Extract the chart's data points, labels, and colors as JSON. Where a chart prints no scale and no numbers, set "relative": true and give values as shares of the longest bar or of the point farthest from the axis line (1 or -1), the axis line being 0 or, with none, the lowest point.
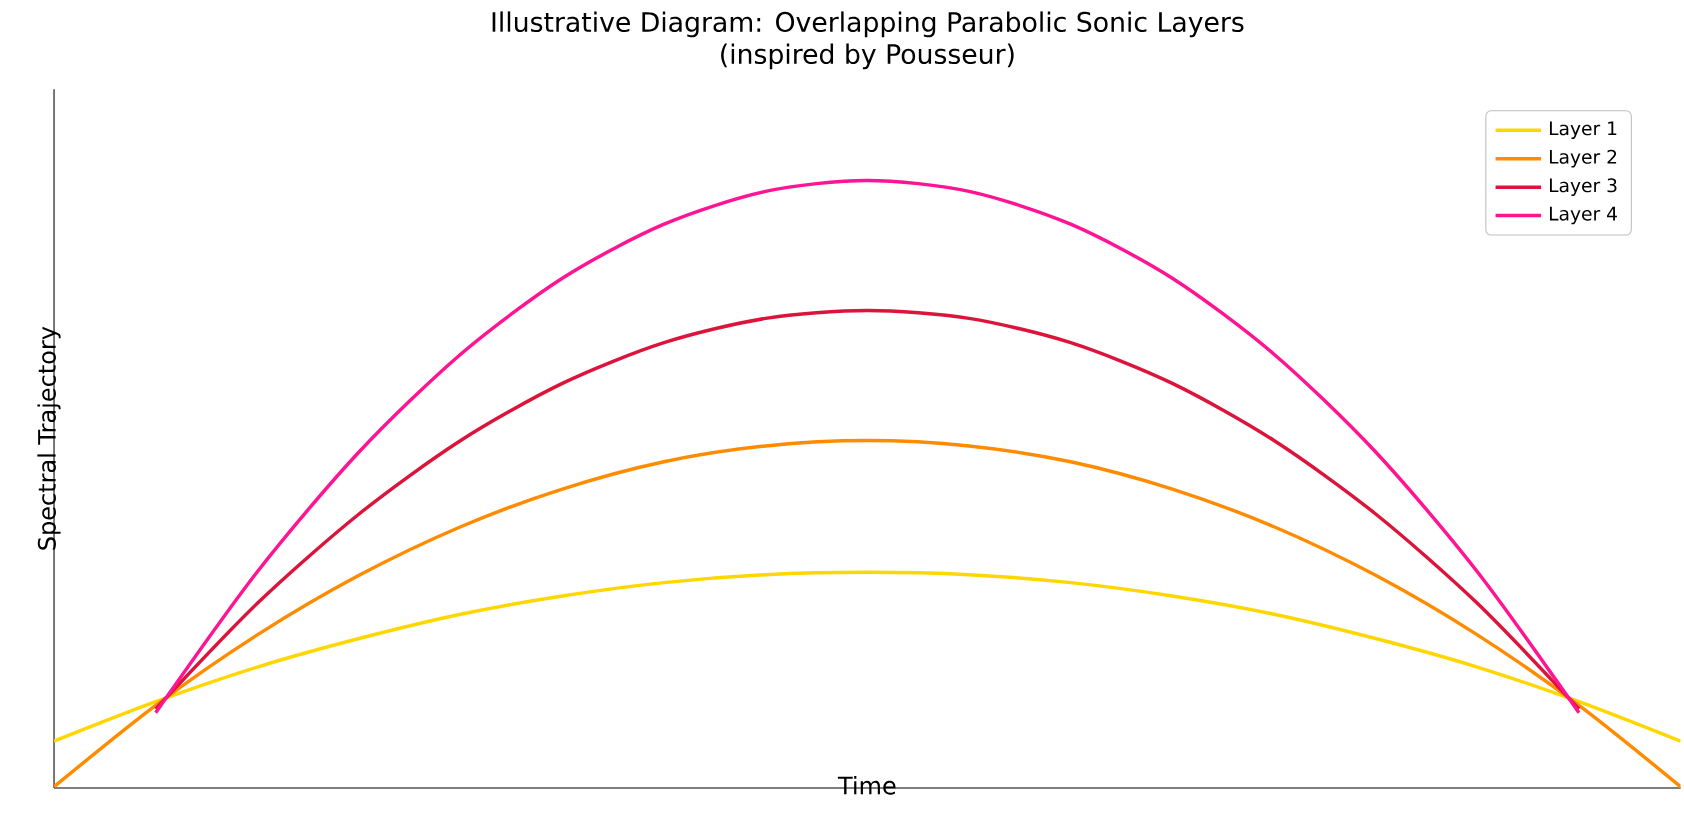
{
  "chart_data": {
    "type": "line",
    "title": "Illustrative Diagram: Overlapping Parabolic Sonic Layers",
    "subtitle": "(inspired by Pousseur)",
    "xlabel": "Time",
    "ylabel": "Spectral Trajectory",
    "relative": true,
    "legend": "top right",
    "marker": "none",
    "line_style": "solid",
    "categories": [
      null,
      null,
      null,
      null,
      null,
      null,
      null,
      null,
      null,
      null,
      null,
      null,
      null,
      null,
      null,
      null,
      null
    ],
    "series": [
      {
        "name": "Layer 1",
        "color": "#ffd700",
        "values": [
          0.077,
          0.142,
          0.199,
          0.246,
          0.286,
          0.316,
          0.338,
          0.351,
          0.355,
          0.351,
          0.338,
          0.316,
          0.286,
          0.246,
          0.199,
          0.142,
          0.077
        ]
      },
      {
        "name": "Layer 2",
        "color": "#ff8c00",
        "values": [
          0.002,
          0.136,
          0.252,
          0.35,
          0.43,
          0.492,
          0.537,
          0.563,
          0.572,
          0.563,
          0.537,
          0.492,
          0.43,
          0.35,
          0.252,
          0.136,
          0.002
        ]
      },
      {
        "name": "Layer 3",
        "color": "#dc143c",
        "values": [
          null,
          0.13,
          0.304,
          0.451,
          0.572,
          0.666,
          0.733,
          0.773,
          0.786,
          0.773,
          0.733,
          0.666,
          0.572,
          0.451,
          0.304,
          0.13,
          null
        ]
      },
      {
        "name": "Layer 4",
        "color": "#ff1493",
        "values": [
          null,
          0.124,
          0.356,
          0.553,
          0.714,
          0.839,
          0.928,
          0.982,
          1,
          0.982,
          0.928,
          0.839,
          0.714,
          0.553,
          0.356,
          0.124,
          null
        ]
      }
    ]
  }
}
